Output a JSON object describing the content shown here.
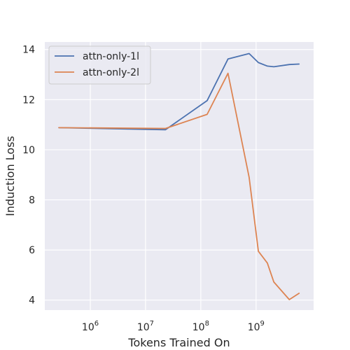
{
  "chart_data": {
    "type": "line",
    "title": "",
    "xlabel": "Tokens Trained On",
    "ylabel": "Induction Loss",
    "xscale": "log",
    "xlim": [
      150000,
      11000000000
    ],
    "ylim": [
      3.6,
      14.3
    ],
    "grid": true,
    "legend_position": "top-left",
    "x_ticks": [
      {
        "value": 1000000,
        "base": "10",
        "exp": "6"
      },
      {
        "value": 10000000,
        "base": "10",
        "exp": "7"
      },
      {
        "value": 100000000,
        "base": "10",
        "exp": "8"
      },
      {
        "value": 1000000000,
        "base": "10",
        "exp": "9"
      }
    ],
    "y_ticks": [
      4,
      6,
      8,
      10,
      12,
      14
    ],
    "series": [
      {
        "name": "attn-only-1l",
        "color": "#4c72b0",
        "x": [
          270000,
          23000000,
          130000000,
          310000000,
          750000000,
          1100000000,
          1600000000,
          2100000000,
          4000000000,
          6000000000
        ],
        "y": [
          10.88,
          10.8,
          11.96,
          13.62,
          13.84,
          13.48,
          13.34,
          13.31,
          13.4,
          13.42
        ]
      },
      {
        "name": "attn-only-2l",
        "color": "#dd8452",
        "x": [
          270000,
          23000000,
          130000000,
          310000000,
          750000000,
          1100000000,
          1600000000,
          2100000000,
          4000000000,
          6000000000
        ],
        "y": [
          10.88,
          10.85,
          11.41,
          13.05,
          8.9,
          5.95,
          5.48,
          4.72,
          4.02,
          4.27
        ]
      }
    ]
  }
}
